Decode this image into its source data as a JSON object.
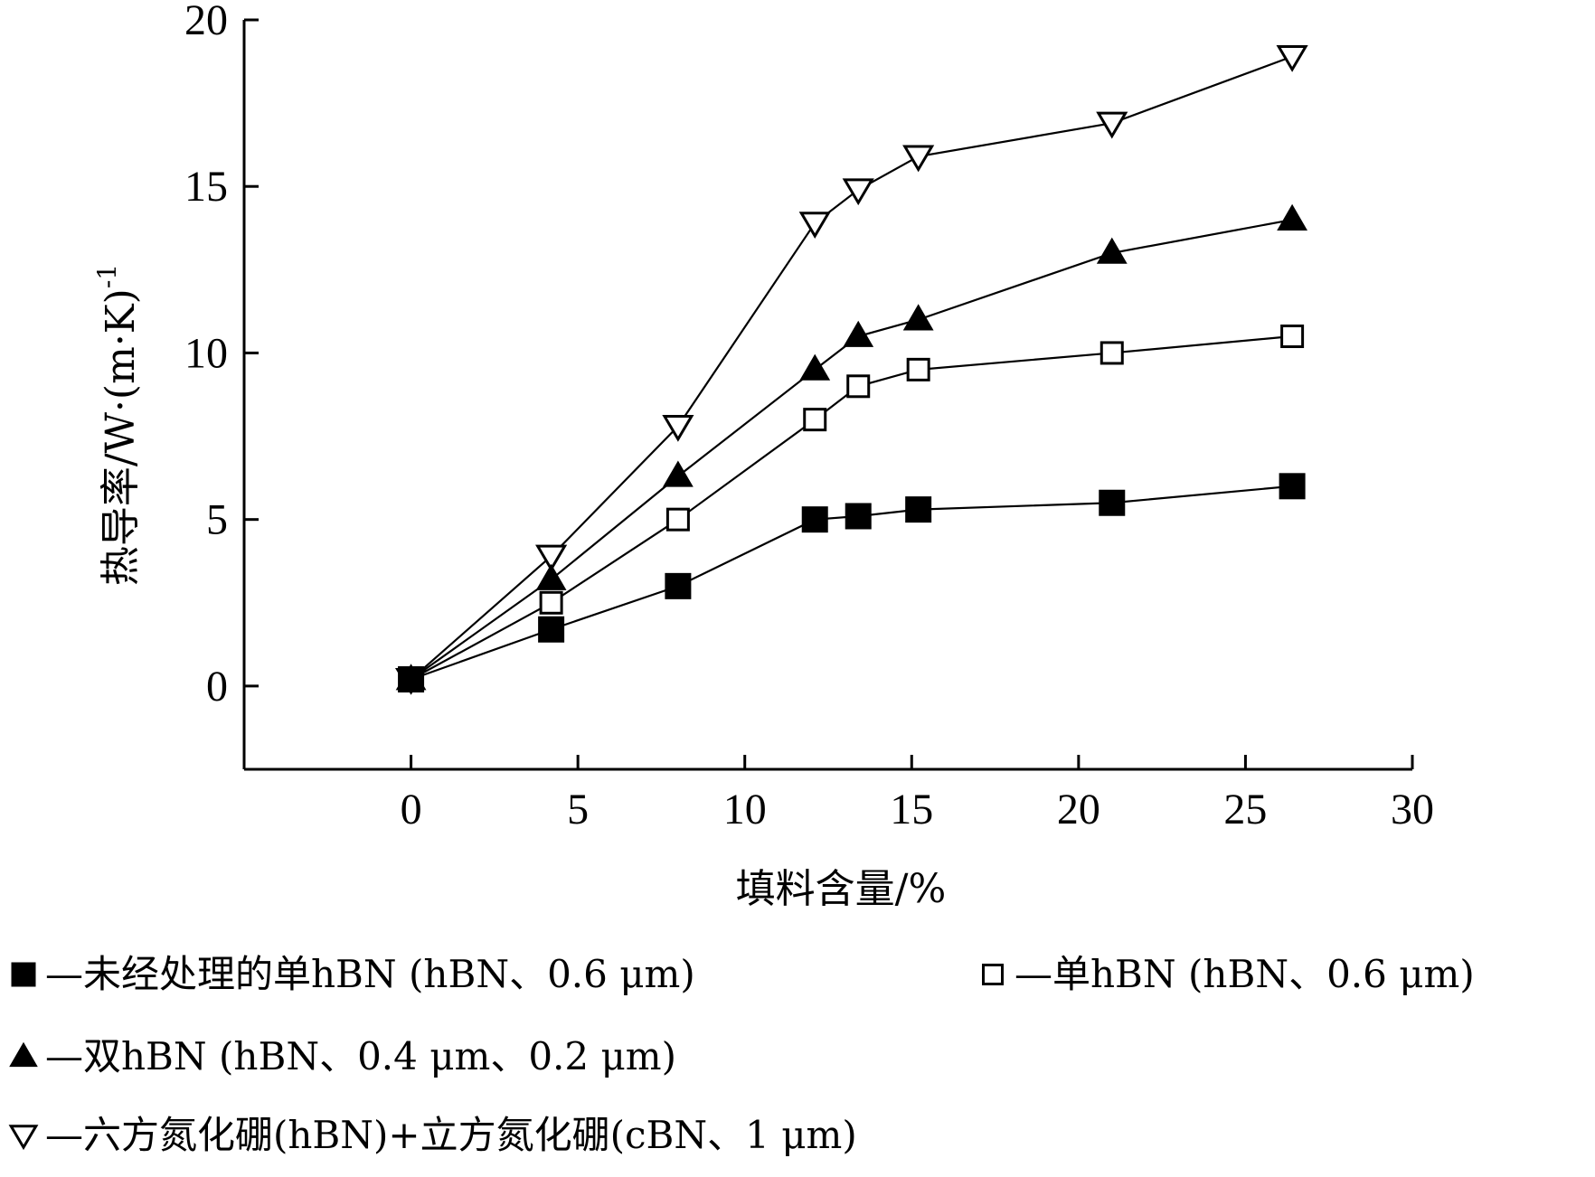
{
  "chart_data": {
    "type": "line",
    "title": "",
    "xlabel": "填料含量/%",
    "ylabel": "热导率/W·(m·K)",
    "ylabel_superscript": "-1",
    "xlim": [
      -5,
      30
    ],
    "ylim": [
      -2.5,
      20
    ],
    "x_ticks": [
      "0",
      "5",
      "10",
      "15",
      "20",
      "25",
      "30"
    ],
    "y_ticks": [
      "0",
      "5",
      "10",
      "15",
      "20"
    ],
    "x_tick_values": [
      0,
      5,
      10,
      15,
      20,
      25,
      30
    ],
    "y_tick_values": [
      0,
      5,
      10,
      15,
      20
    ],
    "grid": false,
    "legend_position": "bottom",
    "series": [
      {
        "name": "—未经处理的单hBN (hBN、0.6 μm)",
        "marker": "filled-square",
        "x": [
          0,
          4.2,
          8,
          12.1,
          13.4,
          15.2,
          21,
          26.4
        ],
        "y": [
          0.2,
          1.7,
          3.0,
          5.0,
          5.1,
          5.3,
          5.5,
          6.0
        ]
      },
      {
        "name": "—单hBN (hBN、0.6 μm)",
        "marker": "open-square",
        "x": [
          0,
          4.2,
          8,
          12.1,
          13.4,
          15.2,
          21,
          26.4
        ],
        "y": [
          0.2,
          2.5,
          5.0,
          8.0,
          9.0,
          9.5,
          10.0,
          10.5
        ]
      },
      {
        "name": "—双hBN (hBN、0.4 μm、0.2 μm)",
        "marker": "filled-triangle",
        "x": [
          0,
          4.2,
          8,
          12.1,
          13.4,
          15.2,
          21,
          26.4
        ],
        "y": [
          0.2,
          3.2,
          6.3,
          9.5,
          10.5,
          11.0,
          13.0,
          14.0
        ]
      },
      {
        "name": "—六方氮化硼(hBN)+立方氮化硼(cBN、1 μm)",
        "marker": "open-triangle-down",
        "x": [
          0,
          4.2,
          8,
          12.1,
          13.4,
          15.2,
          21,
          26.4
        ],
        "y": [
          0.2,
          3.9,
          7.8,
          13.9,
          14.9,
          15.9,
          16.9,
          18.9
        ]
      }
    ]
  }
}
